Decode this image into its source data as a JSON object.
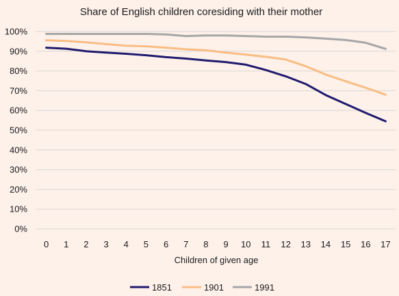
{
  "chart_data": {
    "type": "line",
    "title": "Share of English children coresiding with their mother",
    "xlabel": "Children of given age",
    "ylabel": "",
    "x": [
      0,
      1,
      2,
      3,
      4,
      5,
      6,
      7,
      8,
      9,
      10,
      11,
      12,
      13,
      14,
      15,
      16,
      17
    ],
    "x_tick_labels": [
      "0",
      "1",
      "2",
      "3",
      "4",
      "5",
      "6",
      "7",
      "8",
      "9",
      "10",
      "11",
      "12",
      "13",
      "14",
      "15",
      "16",
      "17"
    ],
    "ylim": [
      0,
      100
    ],
    "y_ticks": [
      0,
      10,
      20,
      30,
      40,
      50,
      60,
      70,
      80,
      90,
      100
    ],
    "y_tick_labels": [
      "0%",
      "10%",
      "20%",
      "30%",
      "40%",
      "50%",
      "60%",
      "70%",
      "80%",
      "90%",
      "100%"
    ],
    "grid": true,
    "legend_position": "bottom",
    "series": [
      {
        "name": "1851",
        "color": "#1f1a6e",
        "values": [
          91.8,
          91.3,
          90.0,
          89.3,
          88.7,
          88.0,
          87.0,
          86.3,
          85.3,
          84.5,
          83.2,
          80.5,
          77.3,
          73.4,
          67.8,
          63.3,
          58.8,
          54.5
        ]
      },
      {
        "name": "1901",
        "color": "#f9bd84",
        "values": [
          95.6,
          95.2,
          94.5,
          93.6,
          92.8,
          92.5,
          91.8,
          91.0,
          90.5,
          89.3,
          88.3,
          87.2,
          85.8,
          82.4,
          78.2,
          74.8,
          71.5,
          68.0
        ]
      },
      {
        "name": "1991",
        "color": "#a6a6a6",
        "values": [
          98.8,
          98.8,
          98.8,
          98.8,
          98.8,
          98.8,
          98.5,
          97.7,
          98.0,
          98.0,
          97.7,
          97.4,
          97.4,
          97.0,
          96.4,
          95.7,
          94.3,
          91.2
        ]
      }
    ]
  }
}
